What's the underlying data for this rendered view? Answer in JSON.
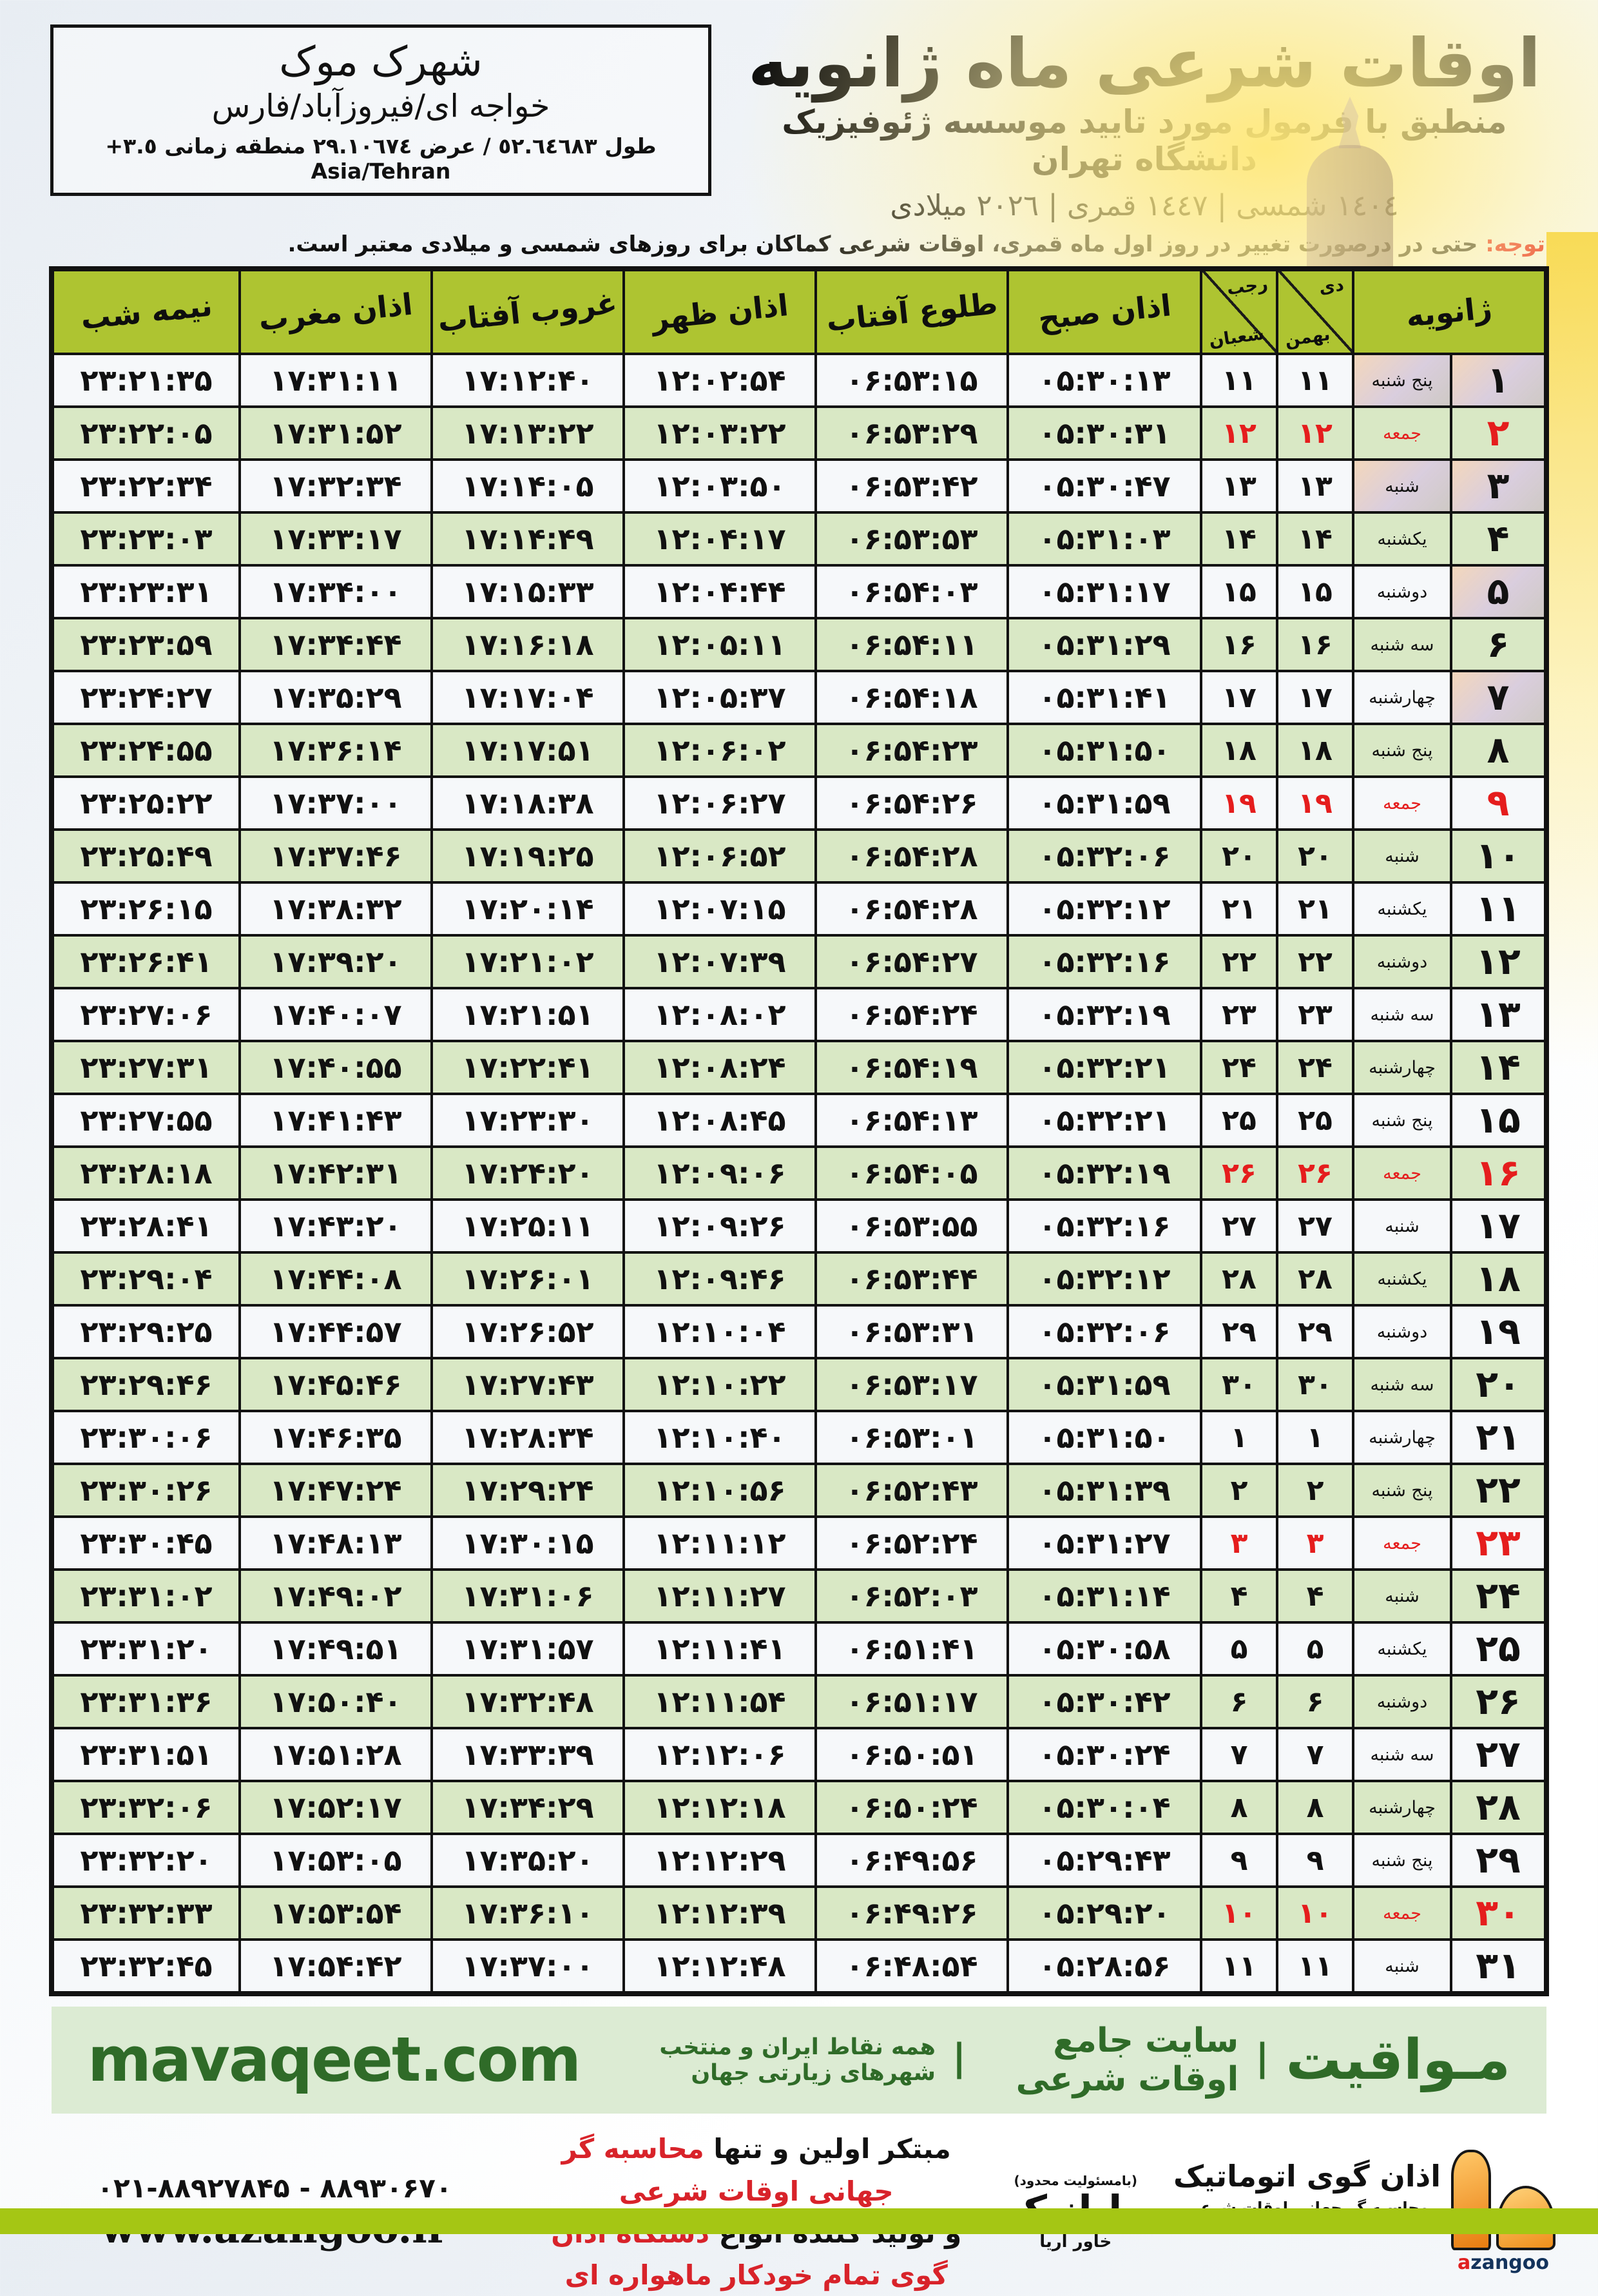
{
  "colors": {
    "header-green": "#aec431",
    "row-green": "#d9e8c5",
    "row-white": "#f6f8fa",
    "fri-red": "#e51d1d",
    "note-red": "#e30000",
    "border": "#121212",
    "mavaqeet-bg": "#dcebd3",
    "mavaqeet-green": "#2f6b28",
    "footer-bar": "#a5c614",
    "slogan-red": "#d8232a"
  },
  "header": {
    "title": "اوقات شرعی ماه ژانویه",
    "subtitle": "منطبق با فرمول مورد تایید موسسه ژئوفیزیک دانشگاه تهران",
    "calendar_line": "١٤٠٤ شمسی | ١٤٤٧ قمری | ٢٠٢٦ میلادی"
  },
  "location": {
    "name": "شهرک موک",
    "region": "خواجه ای/فیروزآباد/فارس",
    "coords": "طول ٥٢.٦٤٦٨٣ / عرض ٢٩.١٠٦٧٤ منطقه زمانی ٣.٥+ Asia/Tehran"
  },
  "note": {
    "label": "توجه:",
    "text": " حتی در درصورت تغییر در روز اول ماه قمری، اوقات شرعی کماکان برای روزهای شمسی و میلادی معتبر است."
  },
  "table": {
    "headers": {
      "january": "ژانویه",
      "dey_top": "دی",
      "dey_bottom": "بهمن",
      "rajab_top": "رجب",
      "rajab_bottom": "شعبان",
      "azan_sobh": "اذان صبح",
      "sunrise": "طلوع آفتاب",
      "azan_zohr": "اذان ظهر",
      "sunset": "غروب آفتاب",
      "azan_maghreb": "اذان مغرب",
      "midnight": "نیمه شب"
    },
    "rows": [
      {
        "d": "۱",
        "w": "پنج شنبه",
        "j": "۱۱",
        "h": "۱۱",
        "sobh": "۰۵:۳۰:۱۳",
        "tolu": "۰۶:۵۳:۱۵",
        "zohr": "۱۲:۰۲:۵۴",
        "ghorub": "۱۷:۱۲:۴۰",
        "maghreb": "۱۷:۳۱:۱۱",
        "nime": "۲۳:۲۱:۳۵",
        "fri": false
      },
      {
        "d": "۲",
        "w": "جمعه",
        "j": "۱۲",
        "h": "۱۲",
        "sobh": "۰۵:۳۰:۳۱",
        "tolu": "۰۶:۵۳:۲۹",
        "zohr": "۱۲:۰۳:۲۲",
        "ghorub": "۱۷:۱۳:۲۲",
        "maghreb": "۱۷:۳۱:۵۲",
        "nime": "۲۳:۲۲:۰۵",
        "fri": true
      },
      {
        "d": "۳",
        "w": "شنبه",
        "j": "۱۳",
        "h": "۱۳",
        "sobh": "۰۵:۳۰:۴۷",
        "tolu": "۰۶:۵۳:۴۲",
        "zohr": "۱۲:۰۳:۵۰",
        "ghorub": "۱۷:۱۴:۰۵",
        "maghreb": "۱۷:۳۲:۳۴",
        "nime": "۲۳:۲۲:۳۴",
        "fri": false
      },
      {
        "d": "۴",
        "w": "یکشنبه",
        "j": "۱۴",
        "h": "۱۴",
        "sobh": "۰۵:۳۱:۰۳",
        "tolu": "۰۶:۵۳:۵۳",
        "zohr": "۱۲:۰۴:۱۷",
        "ghorub": "۱۷:۱۴:۴۹",
        "maghreb": "۱۷:۳۳:۱۷",
        "nime": "۲۳:۲۳:۰۳",
        "fri": false
      },
      {
        "d": "۵",
        "w": "دوشنبه",
        "j": "۱۵",
        "h": "۱۵",
        "sobh": "۰۵:۳۱:۱۷",
        "tolu": "۰۶:۵۴:۰۳",
        "zohr": "۱۲:۰۴:۴۴",
        "ghorub": "۱۷:۱۵:۳۳",
        "maghreb": "۱۷:۳۴:۰۰",
        "nime": "۲۳:۲۳:۳۱",
        "fri": false
      },
      {
        "d": "۶",
        "w": "سه شنبه",
        "j": "۱۶",
        "h": "۱۶",
        "sobh": "۰۵:۳۱:۲۹",
        "tolu": "۰۶:۵۴:۱۱",
        "zohr": "۱۲:۰۵:۱۱",
        "ghorub": "۱۷:۱۶:۱۸",
        "maghreb": "۱۷:۳۴:۴۴",
        "nime": "۲۳:۲۳:۵۹",
        "fri": false
      },
      {
        "d": "۷",
        "w": "چهارشنبه",
        "j": "۱۷",
        "h": "۱۷",
        "sobh": "۰۵:۳۱:۴۱",
        "tolu": "۰۶:۵۴:۱۸",
        "zohr": "۱۲:۰۵:۳۷",
        "ghorub": "۱۷:۱۷:۰۴",
        "maghreb": "۱۷:۳۵:۲۹",
        "nime": "۲۳:۲۴:۲۷",
        "fri": false
      },
      {
        "d": "۸",
        "w": "پنج شنبه",
        "j": "۱۸",
        "h": "۱۸",
        "sobh": "۰۵:۳۱:۵۰",
        "tolu": "۰۶:۵۴:۲۳",
        "zohr": "۱۲:۰۶:۰۲",
        "ghorub": "۱۷:۱۷:۵۱",
        "maghreb": "۱۷:۳۶:۱۴",
        "nime": "۲۳:۲۴:۵۵",
        "fri": false
      },
      {
        "d": "۹",
        "w": "جمعه",
        "j": "۱۹",
        "h": "۱۹",
        "sobh": "۰۵:۳۱:۵۹",
        "tolu": "۰۶:۵۴:۲۶",
        "zohr": "۱۲:۰۶:۲۷",
        "ghorub": "۱۷:۱۸:۳۸",
        "maghreb": "۱۷:۳۷:۰۰",
        "nime": "۲۳:۲۵:۲۲",
        "fri": true
      },
      {
        "d": "۱۰",
        "w": "شنبه",
        "j": "۲۰",
        "h": "۲۰",
        "sobh": "۰۵:۳۲:۰۶",
        "tolu": "۰۶:۵۴:۲۸",
        "zohr": "۱۲:۰۶:۵۲",
        "ghorub": "۱۷:۱۹:۲۵",
        "maghreb": "۱۷:۳۷:۴۶",
        "nime": "۲۳:۲۵:۴۹",
        "fri": false
      },
      {
        "d": "۱۱",
        "w": "یکشنبه",
        "j": "۲۱",
        "h": "۲۱",
        "sobh": "۰۵:۳۲:۱۲",
        "tolu": "۰۶:۵۴:۲۸",
        "zohr": "۱۲:۰۷:۱۵",
        "ghorub": "۱۷:۲۰:۱۴",
        "maghreb": "۱۷:۳۸:۳۲",
        "nime": "۲۳:۲۶:۱۵",
        "fri": false
      },
      {
        "d": "۱۲",
        "w": "دوشنبه",
        "j": "۲۲",
        "h": "۲۲",
        "sobh": "۰۵:۳۲:۱۶",
        "tolu": "۰۶:۵۴:۲۷",
        "zohr": "۱۲:۰۷:۳۹",
        "ghorub": "۱۷:۲۱:۰۲",
        "maghreb": "۱۷:۳۹:۲۰",
        "nime": "۲۳:۲۶:۴۱",
        "fri": false
      },
      {
        "d": "۱۳",
        "w": "سه شنبه",
        "j": "۲۳",
        "h": "۲۳",
        "sobh": "۰۵:۳۲:۱۹",
        "tolu": "۰۶:۵۴:۲۴",
        "zohr": "۱۲:۰۸:۰۲",
        "ghorub": "۱۷:۲۱:۵۱",
        "maghreb": "۱۷:۴۰:۰۷",
        "nime": "۲۳:۲۷:۰۶",
        "fri": false
      },
      {
        "d": "۱۴",
        "w": "چهارشنبه",
        "j": "۲۴",
        "h": "۲۴",
        "sobh": "۰۵:۳۲:۲۱",
        "tolu": "۰۶:۵۴:۱۹",
        "zohr": "۱۲:۰۸:۲۴",
        "ghorub": "۱۷:۲۲:۴۱",
        "maghreb": "۱۷:۴۰:۵۵",
        "nime": "۲۳:۲۷:۳۱",
        "fri": false
      },
      {
        "d": "۱۵",
        "w": "پنج شنبه",
        "j": "۲۵",
        "h": "۲۵",
        "sobh": "۰۵:۳۲:۲۱",
        "tolu": "۰۶:۵۴:۱۳",
        "zohr": "۱۲:۰۸:۴۵",
        "ghorub": "۱۷:۲۳:۳۰",
        "maghreb": "۱۷:۴۱:۴۳",
        "nime": "۲۳:۲۷:۵۵",
        "fri": false
      },
      {
        "d": "۱۶",
        "w": "جمعه",
        "j": "۲۶",
        "h": "۲۶",
        "sobh": "۰۵:۳۲:۱۹",
        "tolu": "۰۶:۵۴:۰۵",
        "zohr": "۱۲:۰۹:۰۶",
        "ghorub": "۱۷:۲۴:۲۰",
        "maghreb": "۱۷:۴۲:۳۱",
        "nime": "۲۳:۲۸:۱۸",
        "fri": true
      },
      {
        "d": "۱۷",
        "w": "شنبه",
        "j": "۲۷",
        "h": "۲۷",
        "sobh": "۰۵:۳۲:۱۶",
        "tolu": "۰۶:۵۳:۵۵",
        "zohr": "۱۲:۰۹:۲۶",
        "ghorub": "۱۷:۲۵:۱۱",
        "maghreb": "۱۷:۴۳:۲۰",
        "nime": "۲۳:۲۸:۴۱",
        "fri": false
      },
      {
        "d": "۱۸",
        "w": "یکشنبه",
        "j": "۲۸",
        "h": "۲۸",
        "sobh": "۰۵:۳۲:۱۲",
        "tolu": "۰۶:۵۳:۴۴",
        "zohr": "۱۲:۰۹:۴۶",
        "ghorub": "۱۷:۲۶:۰۱",
        "maghreb": "۱۷:۴۴:۰۸",
        "nime": "۲۳:۲۹:۰۴",
        "fri": false
      },
      {
        "d": "۱۹",
        "w": "دوشنبه",
        "j": "۲۹",
        "h": "۲۹",
        "sobh": "۰۵:۳۲:۰۶",
        "tolu": "۰۶:۵۳:۳۱",
        "zohr": "۱۲:۱۰:۰۴",
        "ghorub": "۱۷:۲۶:۵۲",
        "maghreb": "۱۷:۴۴:۵۷",
        "nime": "۲۳:۲۹:۲۵",
        "fri": false
      },
      {
        "d": "۲۰",
        "w": "سه شنبه",
        "j": "۳۰",
        "h": "۳۰",
        "sobh": "۰۵:۳۱:۵۹",
        "tolu": "۰۶:۵۳:۱۷",
        "zohr": "۱۲:۱۰:۲۲",
        "ghorub": "۱۷:۲۷:۴۳",
        "maghreb": "۱۷:۴۵:۴۶",
        "nime": "۲۳:۲۹:۴۶",
        "fri": false
      },
      {
        "d": "۲۱",
        "w": "چهارشنبه",
        "j": "۱",
        "h": "۱",
        "sobh": "۰۵:۳۱:۵۰",
        "tolu": "۰۶:۵۳:۰۱",
        "zohr": "۱۲:۱۰:۴۰",
        "ghorub": "۱۷:۲۸:۳۴",
        "maghreb": "۱۷:۴۶:۳۵",
        "nime": "۲۳:۳۰:۰۶",
        "fri": false
      },
      {
        "d": "۲۲",
        "w": "پنج شنبه",
        "j": "۲",
        "h": "۲",
        "sobh": "۰۵:۳۱:۳۹",
        "tolu": "۰۶:۵۲:۴۳",
        "zohr": "۱۲:۱۰:۵۶",
        "ghorub": "۱۷:۲۹:۲۴",
        "maghreb": "۱۷:۴۷:۲۴",
        "nime": "۲۳:۳۰:۲۶",
        "fri": false
      },
      {
        "d": "۲۳",
        "w": "جمعه",
        "j": "۳",
        "h": "۳",
        "sobh": "۰۵:۳۱:۲۷",
        "tolu": "۰۶:۵۲:۲۴",
        "zohr": "۱۲:۱۱:۱۲",
        "ghorub": "۱۷:۳۰:۱۵",
        "maghreb": "۱۷:۴۸:۱۳",
        "nime": "۲۳:۳۰:۴۵",
        "fri": true
      },
      {
        "d": "۲۴",
        "w": "شنبه",
        "j": "۴",
        "h": "۴",
        "sobh": "۰۵:۳۱:۱۴",
        "tolu": "۰۶:۵۲:۰۳",
        "zohr": "۱۲:۱۱:۲۷",
        "ghorub": "۱۷:۳۱:۰۶",
        "maghreb": "۱۷:۴۹:۰۲",
        "nime": "۲۳:۳۱:۰۲",
        "fri": false
      },
      {
        "d": "۲۵",
        "w": "یکشنبه",
        "j": "۵",
        "h": "۵",
        "sobh": "۰۵:۳۰:۵۸",
        "tolu": "۰۶:۵۱:۴۱",
        "zohr": "۱۲:۱۱:۴۱",
        "ghorub": "۱۷:۳۱:۵۷",
        "maghreb": "۱۷:۴۹:۵۱",
        "nime": "۲۳:۳۱:۲۰",
        "fri": false
      },
      {
        "d": "۲۶",
        "w": "دوشنبه",
        "j": "۶",
        "h": "۶",
        "sobh": "۰۵:۳۰:۴۲",
        "tolu": "۰۶:۵۱:۱۷",
        "zohr": "۱۲:۱۱:۵۴",
        "ghorub": "۱۷:۳۲:۴۸",
        "maghreb": "۱۷:۵۰:۴۰",
        "nime": "۲۳:۳۱:۳۶",
        "fri": false
      },
      {
        "d": "۲۷",
        "w": "سه شنبه",
        "j": "۷",
        "h": "۷",
        "sobh": "۰۵:۳۰:۲۴",
        "tolu": "۰۶:۵۰:۵۱",
        "zohr": "۱۲:۱۲:۰۶",
        "ghorub": "۱۷:۳۳:۳۹",
        "maghreb": "۱۷:۵۱:۲۸",
        "nime": "۲۳:۳۱:۵۱",
        "fri": false
      },
      {
        "d": "۲۸",
        "w": "چهارشنبه",
        "j": "۸",
        "h": "۸",
        "sobh": "۰۵:۳۰:۰۴",
        "tolu": "۰۶:۵۰:۲۴",
        "zohr": "۱۲:۱۲:۱۸",
        "ghorub": "۱۷:۳۴:۲۹",
        "maghreb": "۱۷:۵۲:۱۷",
        "nime": "۲۳:۳۲:۰۶",
        "fri": false
      },
      {
        "d": "۲۹",
        "w": "پنج شنبه",
        "j": "۹",
        "h": "۹",
        "sobh": "۰۵:۲۹:۴۳",
        "tolu": "۰۶:۴۹:۵۶",
        "zohr": "۱۲:۱۲:۲۹",
        "ghorub": "۱۷:۳۵:۲۰",
        "maghreb": "۱۷:۵۳:۰۵",
        "nime": "۲۳:۳۲:۲۰",
        "fri": false
      },
      {
        "d": "۳۰",
        "w": "جمعه",
        "j": "۱۰",
        "h": "۱۰",
        "sobh": "۰۵:۲۹:۲۰",
        "tolu": "۰۶:۴۹:۲۶",
        "zohr": "۱۲:۱۲:۳۹",
        "ghorub": "۱۷:۳۶:۱۰",
        "maghreb": "۱۷:۵۳:۵۴",
        "nime": "۲۳:۳۲:۳۳",
        "fri": true
      },
      {
        "d": "۳۱",
        "w": "شنبه",
        "j": "۱۱",
        "h": "۱۱",
        "sobh": "۰۵:۲۸:۵۶",
        "tolu": "۰۶:۴۸:۵۴",
        "zohr": "۱۲:۱۲:۴۸",
        "ghorub": "۱۷:۳۷:۰۰",
        "maghreb": "۱۷:۵۴:۴۲",
        "nime": "۲۳:۳۲:۴۵",
        "fri": false
      }
    ]
  },
  "mavaqeet": {
    "brand_fa": "مـواقیت",
    "separator": "|",
    "tagline1": "سایت جامع اوقات شرعی",
    "tagline2": "همه نقاط ایران و منتخب شهرهای زیارتی جهان",
    "domain": "mavaqeet.com"
  },
  "footer": {
    "azangoo": {
      "wordmark_fa": "اذان گوی اتوماتیک",
      "tagline_fa": "محاسبه گر جهانی اوقات شرعی",
      "wordmark_en": "azangoo"
    },
    "rayanik": {
      "note": "(بامسئولیت محدود)",
      "name": "رایانیک",
      "side": "خاور آریا"
    },
    "slogan": {
      "line1_black": "مبتکر اولین و تنها ",
      "line1_red": "محاسبه گر جهانی اوقات شرعی",
      "line2_black": "و تولید کننده انواع ",
      "line2_red": "دستگاه اذان گوی تمام خودکار ماهواره ای"
    },
    "contact": {
      "phone": "۰۲۱-۸۸۹۲۷۸۴۵ - ۸۸۹۳۰۶۷۰",
      "site": "www.azangoo.ir"
    }
  }
}
